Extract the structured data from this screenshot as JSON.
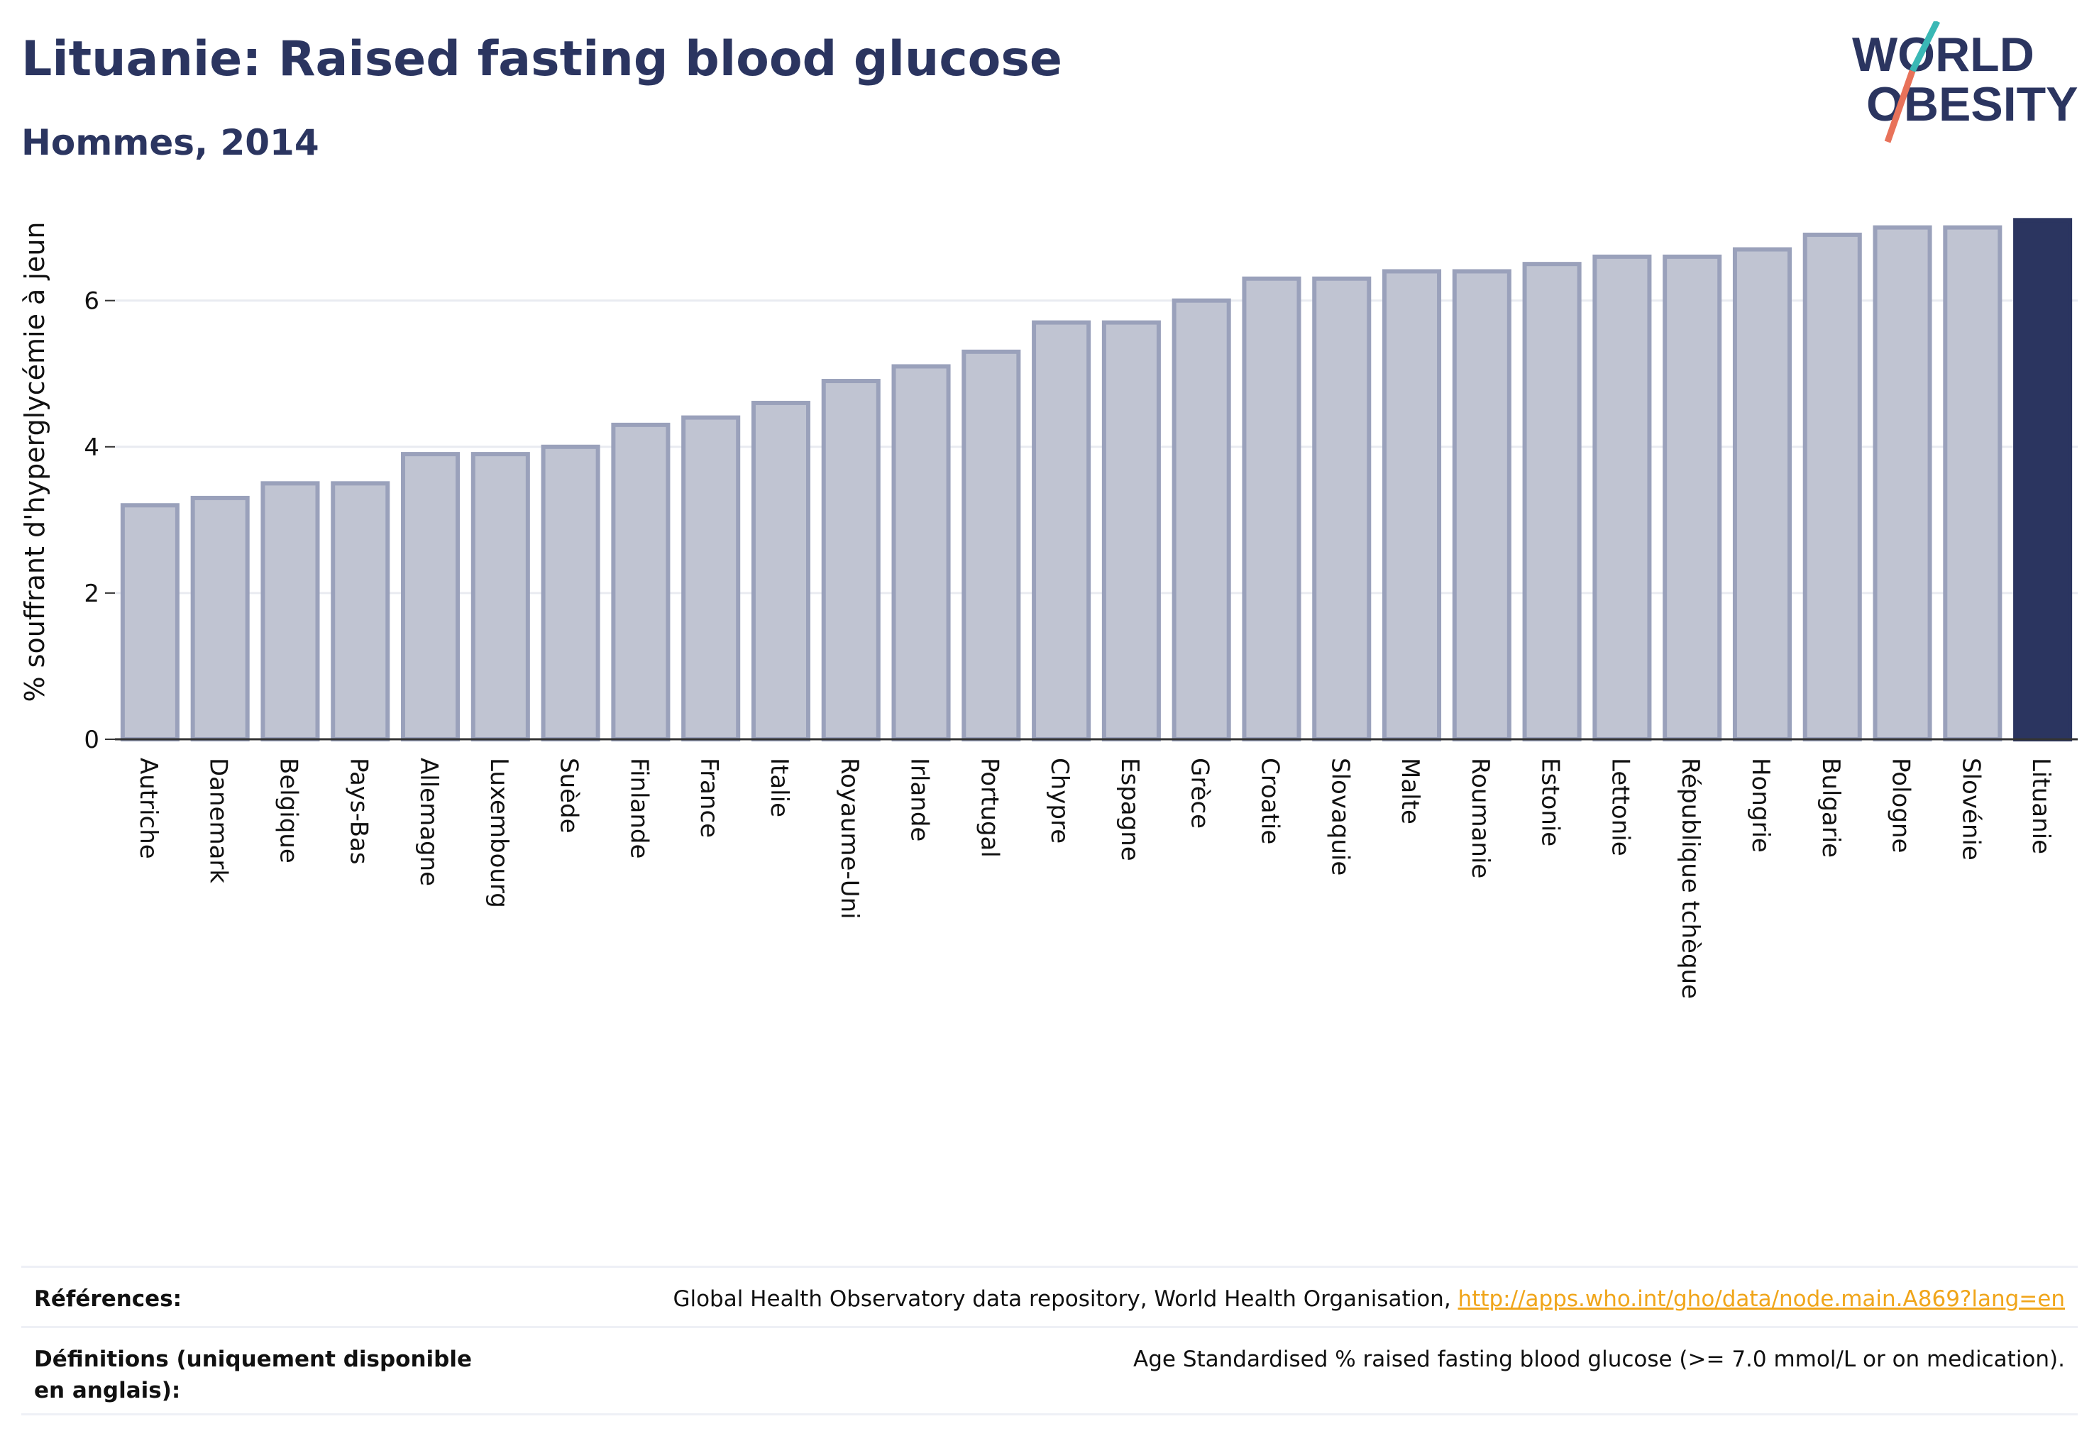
{
  "header": {
    "title": "Lituanie: Raised fasting blood glucose",
    "subtitle": "Hommes, 2014"
  },
  "logo": {
    "line1": "WORLD",
    "line2": "OBESITY"
  },
  "colors": {
    "bar_fill": "#c0c4d2",
    "bar_stroke": "#9aa1bb",
    "highlight": "#2b3560",
    "title": "#2b3560",
    "link": "#f0a51a",
    "logo_teal": "#3ab8b5",
    "logo_coral": "#e8725a"
  },
  "chart_data": {
    "type": "bar",
    "ylabel": "% souffrant d'hyperglycémie à jeun",
    "xlabel": "",
    "ylim": [
      0,
      7.2
    ],
    "yticks": [
      0,
      2,
      4,
      6
    ],
    "grid": true,
    "highlight": "Lituanie",
    "categories": [
      "Autriche",
      "Danemark",
      "Belgique",
      "Pays-Bas",
      "Allemagne",
      "Luxembourg",
      "Suède",
      "Finlande",
      "France",
      "Italie",
      "Royaume-Uni",
      "Irlande",
      "Portugal",
      "Chypre",
      "Espagne",
      "Grèce",
      "Croatie",
      "Slovaquie",
      "Malte",
      "Roumanie",
      "Estonie",
      "Lettonie",
      "République tchèque",
      "Hongrie",
      "Bulgarie",
      "Pologne",
      "Slovénie",
      "Lituanie"
    ],
    "values": [
      3.2,
      3.3,
      3.5,
      3.5,
      3.9,
      3.9,
      4.0,
      4.3,
      4.4,
      4.6,
      4.9,
      5.1,
      5.3,
      5.7,
      5.7,
      6.0,
      6.3,
      6.3,
      6.4,
      6.4,
      6.5,
      6.6,
      6.6,
      6.7,
      6.9,
      7.0,
      7.0,
      7.1
    ]
  },
  "references": {
    "refs_label": "Références:",
    "refs_text": "Global Health Observatory data repository, World Health Organisation, ",
    "refs_link": "http://apps.who.int/gho/data/node.main.A869?lang=en",
    "defs_label": "Définitions (uniquement disponible en anglais):",
    "defs_text": "Age Standardised % raised fasting blood glucose (>= 7.0 mmol/L or on medication)."
  }
}
